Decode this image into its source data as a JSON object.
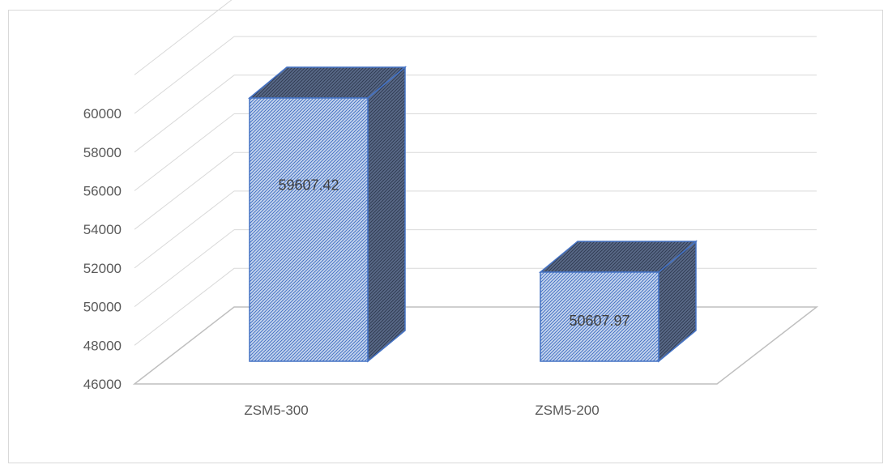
{
  "chart_data": {
    "type": "bar",
    "style": "3d-column",
    "categories": [
      "ZSM5-300",
      "ZSM5-200"
    ],
    "series": [
      {
        "values": [
          59607.42,
          50607.97
        ]
      }
    ],
    "data_labels": [
      "59607.42",
      "50607.97"
    ],
    "y_ticks": [
      "46000",
      "48000",
      "50000",
      "52000",
      "54000",
      "56000",
      "58000",
      "60000"
    ],
    "ylim": [
      46000,
      60000
    ],
    "grid": true,
    "legend": "none",
    "title": "",
    "xlabel": "",
    "ylabel": ""
  },
  "colors": {
    "bar_fill": "#c9d7ee",
    "bar_hatch": "#4472c4",
    "bar_side": "#4a5a78",
    "bar_edge": "#4472c4",
    "grid": "#d9d9d9",
    "floor": "#bfbfbf",
    "text": "#595959"
  }
}
